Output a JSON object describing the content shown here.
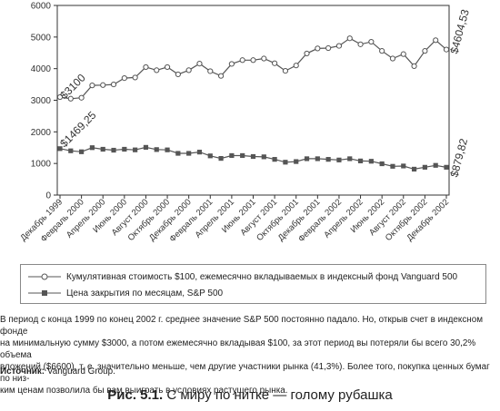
{
  "chart_data": {
    "type": "line",
    "ylim": [
      0,
      6000
    ],
    "yticks": [
      0,
      1000,
      2000,
      3000,
      4000,
      5000,
      6000
    ],
    "x_labels": [
      "Декабрь 1999",
      "Февраль 2000",
      "Апрель 2000",
      "Июнь 2000",
      "Август 2000",
      "Октябрь 2000",
      "Декабрь 2000",
      "Февраль 2001",
      "Апрель 2001",
      "Июнь 2001",
      "Август 2001",
      "Октябрь 2001",
      "Декабрь 2001",
      "Февраль 2002",
      "Апрель 2002",
      "Июнь 2002",
      "Август 2002",
      "Октябрь 2002",
      "Декабрь 2002"
    ],
    "series": [
      {
        "name": "Кумулятивная стоимость $100, ежемесячно вкладываемых в индексный фонд Vanguard 500",
        "marker": "circle",
        "values": [
          3100,
          3050,
          3080,
          3470,
          3480,
          3500,
          3700,
          3720,
          4050,
          3950,
          4050,
          3820,
          3950,
          4160,
          3920,
          3770,
          4150,
          4270,
          4270,
          4320,
          4170,
          3930,
          4100,
          4480,
          4640,
          4650,
          4720,
          4960,
          4770,
          4850,
          4560,
          4320,
          4460,
          4080,
          4560,
          4900,
          4604.53
        ]
      },
      {
        "name": "Цена закрытия по месяцам, S&P 500",
        "marker": "square",
        "values": [
          1469.25,
          1400,
          1370,
          1500,
          1450,
          1420,
          1450,
          1430,
          1510,
          1440,
          1430,
          1320,
          1320,
          1360,
          1240,
          1160,
          1250,
          1250,
          1220,
          1210,
          1130,
          1040,
          1060,
          1150,
          1150,
          1130,
          1110,
          1150,
          1080,
          1070,
          990,
          910,
          920,
          820,
          880,
          940,
          879.82
        ]
      }
    ],
    "annotations": [
      "$3100",
      "$1469,25",
      "$4604,53",
      "$879,82"
    ]
  },
  "caption": "В период с конца 1999 по конец 2002 г. среднее значение S&P 500 постоянно падало. Но, открыв счет в индексном фонде на минимальную сумму $3000, а потом ежемесячно вкладывая $100, за этот период вы потеряли бы всего 30,2% объема вложений ($6600), т. е. значительно меньше, чем другие участники рынка (41,3%). Более того, покупка ценных бумаг по низким ценам позволила бы вам выиграть в условиях растущего рынка.",
  "caption_lines": [
    "В период с конца 1999 по конец 2002 г. среднее значение S&P 500 постоянно падало. Но, открыв счет в индексном фонде",
    "на минимальную сумму $3000, а потом ежемесячно вкладывая $100, за этот период вы потеряли бы всего 30,2% объема",
    "вложений ($6600), т. е. значительно меньше, чем другие участники рынка (41,3%). Более того, покупка ценных бумаг по низ-",
    "ким ценам позволила бы вам выиграть в условиях растущего рынка."
  ],
  "source_label": "Источник:",
  "source_value": "Vanguard Group.",
  "figure_label": "Рис. 5.1.",
  "figure_title": "С миру по нитке — голому рубашка",
  "colors": {
    "line": "#555555",
    "axis": "#333333"
  }
}
